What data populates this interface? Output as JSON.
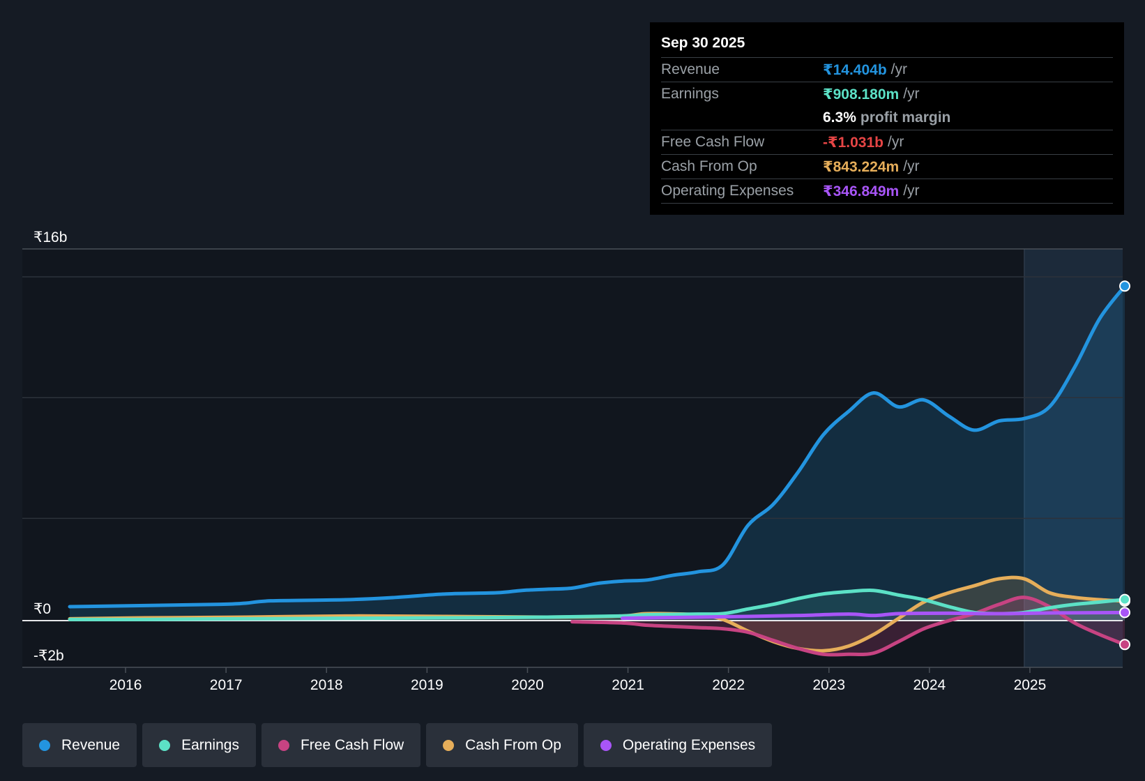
{
  "colors": {
    "revenue": "#2394df",
    "earnings": "#5ce1c6",
    "fcf": "#c74382",
    "cfo": "#e6ae5a",
    "opex": "#a855f7"
  },
  "tooltip": {
    "date": "Sep 30 2025",
    "rows": {
      "revenue": {
        "label": "Revenue",
        "value": "₹14.404b",
        "unit": "/yr"
      },
      "earnings": {
        "label": "Earnings",
        "value": "₹908.180m",
        "unit": "/yr"
      },
      "margin": {
        "value": "6.3%",
        "unit": "profit margin"
      },
      "fcf": {
        "label": "Free Cash Flow",
        "value": "-₹1.031b",
        "unit": "/yr"
      },
      "cfo": {
        "label": "Cash From Op",
        "value": "₹843.224m",
        "unit": "/yr"
      },
      "opex": {
        "label": "Operating Expenses",
        "value": "₹346.849m",
        "unit": "/yr"
      }
    }
  },
  "legend": {
    "revenue": "Revenue",
    "earnings": "Earnings",
    "fcf": "Free Cash Flow",
    "cfo": "Cash From Op",
    "opex": "Operating Expenses"
  },
  "chart_data": {
    "type": "line",
    "title": "",
    "ylim": [
      -2,
      16
    ],
    "y_tick_labels": [
      "₹16b",
      "₹0",
      "-₹2b"
    ],
    "y_tick_values": [
      16,
      0,
      -2
    ],
    "x_ticks": [
      "2016",
      "2017",
      "2018",
      "2019",
      "2020",
      "2021",
      "2022",
      "2023",
      "2024",
      "2025"
    ],
    "x_tick_values": [
      2016,
      2017,
      2018,
      2019,
      2020,
      2021,
      2022,
      2023,
      2024,
      2025
    ],
    "x_range": [
      2014.8,
      2025.75
    ],
    "highlight_start": 2024.75,
    "series": [
      {
        "name": "Revenue",
        "key": "revenue",
        "x": [
          2015.25,
          2016.0,
          2016.75,
          2017.0,
          2017.25,
          2018.0,
          2018.5,
          2019.0,
          2019.5,
          2019.75,
          2020.0,
          2020.25,
          2020.5,
          2020.75,
          2021.0,
          2021.25,
          2021.5,
          2021.75,
          2022.0,
          2022.25,
          2022.5,
          2022.75,
          2023.0,
          2023.25,
          2023.5,
          2023.75,
          2024.0,
          2024.25,
          2024.5,
          2024.75,
          2025.0,
          2025.25,
          2025.5,
          2025.75
        ],
        "y": [
          0.6,
          0.65,
          0.7,
          0.75,
          0.85,
          0.9,
          1.0,
          1.15,
          1.2,
          1.3,
          1.35,
          1.4,
          1.6,
          1.7,
          1.75,
          1.95,
          2.1,
          2.4,
          4.1,
          5.0,
          6.4,
          8.0,
          9.0,
          9.8,
          9.2,
          9.5,
          8.8,
          8.2,
          8.6,
          8.7,
          9.2,
          10.9,
          13.0,
          14.4
        ]
      },
      {
        "name": "Earnings",
        "key": "earnings",
        "x": [
          2015.25,
          2016.0,
          2017.0,
          2018.0,
          2019.0,
          2020.0,
          2020.75,
          2021.0,
          2021.5,
          2021.75,
          2022.0,
          2022.25,
          2022.5,
          2022.75,
          2023.0,
          2023.25,
          2023.5,
          2023.75,
          2024.0,
          2024.25,
          2024.5,
          2024.75,
          2025.0,
          2025.25,
          2025.5,
          2025.75
        ],
        "y": [
          0.05,
          0.05,
          0.08,
          0.1,
          0.12,
          0.15,
          0.2,
          0.25,
          0.28,
          0.3,
          0.5,
          0.7,
          0.95,
          1.15,
          1.25,
          1.3,
          1.1,
          0.9,
          0.6,
          0.35,
          0.3,
          0.35,
          0.55,
          0.7,
          0.8,
          0.91
        ]
      },
      {
        "name": "Free Cash Flow",
        "key": "fcf",
        "x": [
          2020.25,
          2020.75,
          2021.0,
          2021.25,
          2021.5,
          2021.75,
          2022.0,
          2022.25,
          2022.5,
          2022.75,
          2023.0,
          2023.25,
          2023.5,
          2023.75,
          2024.0,
          2024.25,
          2024.5,
          2024.75,
          2025.0,
          2025.25,
          2025.5,
          2025.75
        ],
        "y": [
          -0.05,
          -0.1,
          -0.2,
          -0.25,
          -0.3,
          -0.35,
          -0.5,
          -0.85,
          -1.2,
          -1.45,
          -1.45,
          -1.4,
          -0.9,
          -0.35,
          0.0,
          0.3,
          0.7,
          1.0,
          0.6,
          -0.1,
          -0.6,
          -1.03
        ]
      },
      {
        "name": "Cash From Op",
        "key": "cfo",
        "x": [
          2015.25,
          2016.0,
          2017.0,
          2018.0,
          2019.0,
          2020.0,
          2020.75,
          2021.0,
          2021.5,
          2021.75,
          2022.0,
          2022.25,
          2022.5,
          2022.75,
          2023.0,
          2023.25,
          2023.5,
          2023.75,
          2024.0,
          2024.25,
          2024.5,
          2024.75,
          2025.0,
          2025.25,
          2025.5,
          2025.75
        ],
        "y": [
          0.08,
          0.12,
          0.15,
          0.2,
          0.18,
          0.15,
          0.2,
          0.3,
          0.25,
          0.05,
          -0.45,
          -0.9,
          -1.2,
          -1.3,
          -1.1,
          -0.6,
          0.1,
          0.8,
          1.2,
          1.5,
          1.8,
          1.8,
          1.2,
          1.0,
          0.9,
          0.84
        ]
      },
      {
        "name": "Operating Expenses",
        "key": "opex",
        "x": [
          2020.75,
          2021.0,
          2021.5,
          2022.0,
          2022.5,
          2023.0,
          2023.25,
          2023.5,
          2024.0,
          2024.5,
          2025.0,
          2025.5,
          2025.75
        ],
        "y": [
          0.1,
          0.12,
          0.15,
          0.18,
          0.22,
          0.28,
          0.22,
          0.3,
          0.32,
          0.3,
          0.33,
          0.34,
          0.35
        ]
      }
    ]
  }
}
